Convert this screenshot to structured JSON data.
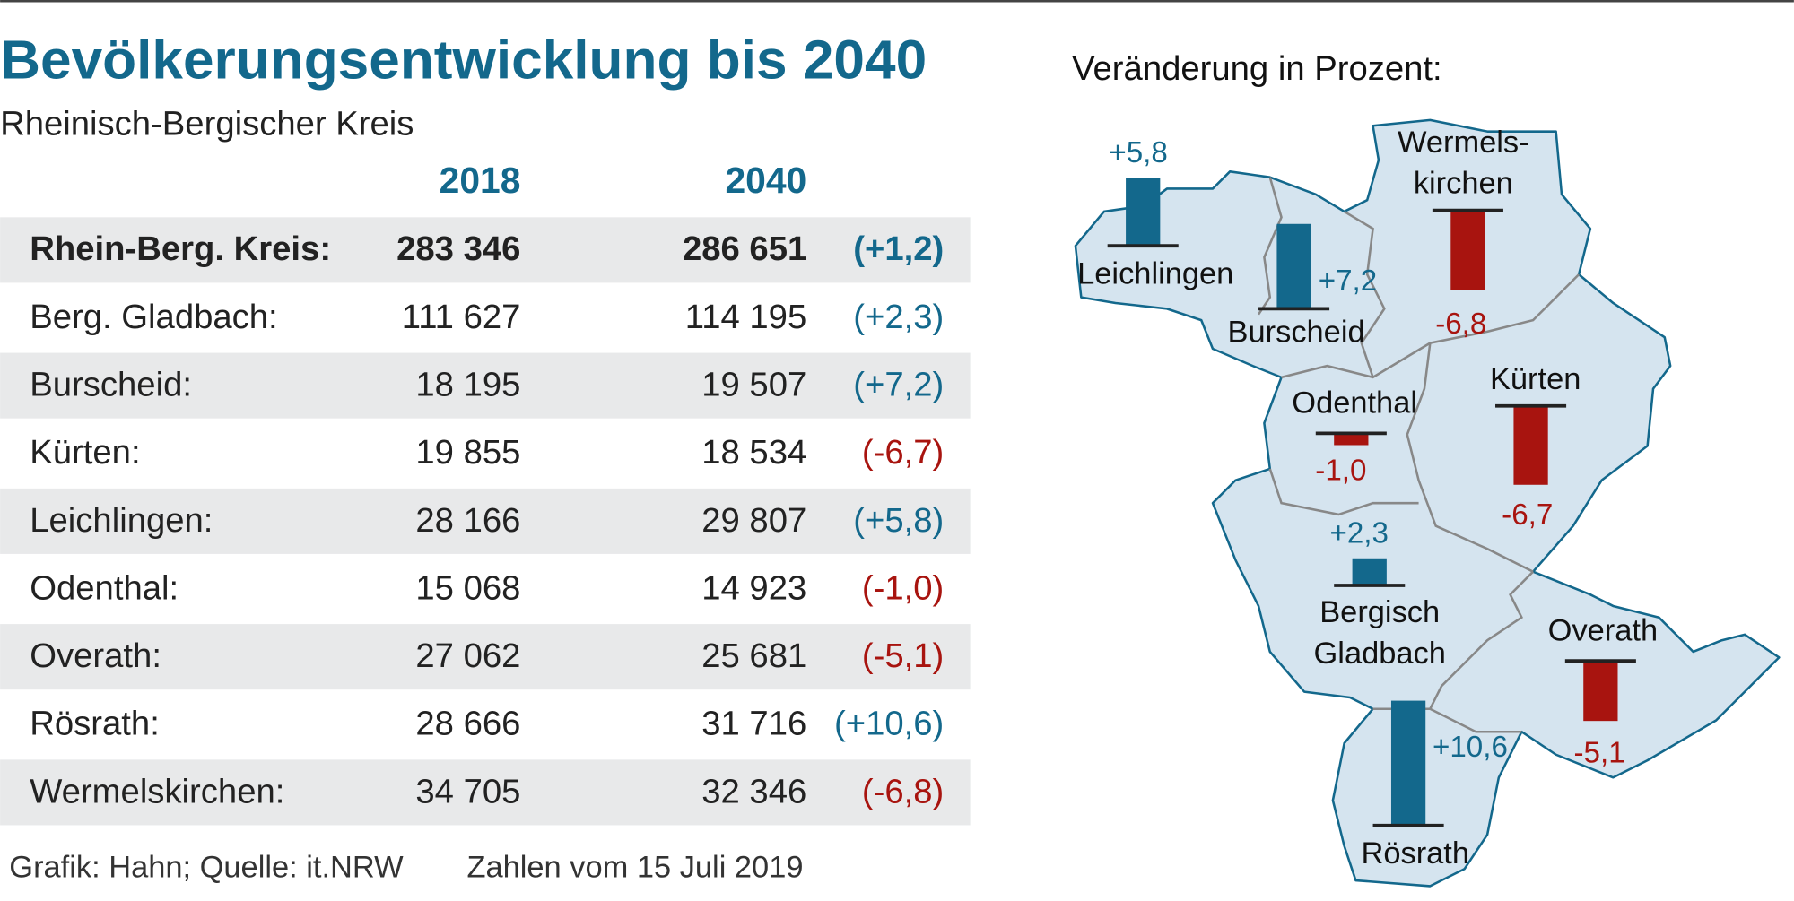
{
  "header": {
    "title": "Bevölkerungsentwicklung bis 2040",
    "subtitle": "Rheinisch-Bergischer Kreis"
  },
  "table": {
    "columns": [
      "2018",
      "2040"
    ],
    "rows": [
      [
        "Rhein-Berg. Kreis:",
        "283 346",
        "286 651",
        "(+1,2)"
      ],
      [
        "Berg. Gladbach:",
        "111 627",
        "114 195",
        "(+2,3)"
      ],
      [
        "Burscheid:",
        "18 195",
        "19 507",
        "(+7,2)"
      ],
      [
        "Kürten:",
        "19 855",
        "18 534",
        "(-6,7)"
      ],
      [
        "Leichlingen:",
        "28 166",
        "29 807",
        "(+5,8)"
      ],
      [
        "Odenthal:",
        "15 068",
        "14 923",
        "(-1,0)"
      ],
      [
        "Overath:",
        "27 062",
        "25 681",
        "(-5,1)"
      ],
      [
        "Rösrath:",
        "28 666",
        "31 716",
        "(+10,6)"
      ],
      [
        "Wermelskirchen:",
        "34 705",
        "32 346",
        "(-6,8)"
      ]
    ]
  },
  "footer": {
    "source": "Grafik: Hahn; Quelle: it.NRW",
    "date": "Zahlen vom 15 Juli 2019"
  },
  "map": {
    "title": "Veränderung in Prozent:",
    "regions": [
      {
        "name": [
          "Leichlingen"
        ],
        "value": 5.8,
        "value_label": "+5,8",
        "color": "#13688c"
      },
      {
        "name": [
          "Burscheid"
        ],
        "value": 7.2,
        "value_label": "+7,2",
        "color": "#13688c"
      },
      {
        "name": [
          "Wermels-",
          "kirchen"
        ],
        "value": -6.8,
        "value_label": "-6,8",
        "color": "#a8140f"
      },
      {
        "name": [
          "Odenthal"
        ],
        "value": -1.0,
        "value_label": "-1,0",
        "color": "#a8140f"
      },
      {
        "name": [
          "Kürten"
        ],
        "value": -6.7,
        "value_label": "-6,7",
        "color": "#a8140f"
      },
      {
        "name": [
          "Bergisch",
          "Gladbach"
        ],
        "value": 2.3,
        "value_label": "+2,3",
        "color": "#13688c"
      },
      {
        "name": [
          "Overath"
        ],
        "value": -5.1,
        "value_label": "-5,1",
        "color": "#a8140f"
      },
      {
        "name": [
          "Rösrath"
        ],
        "value": 10.6,
        "value_label": "+10,6",
        "color": "#13688c"
      }
    ]
  }
}
